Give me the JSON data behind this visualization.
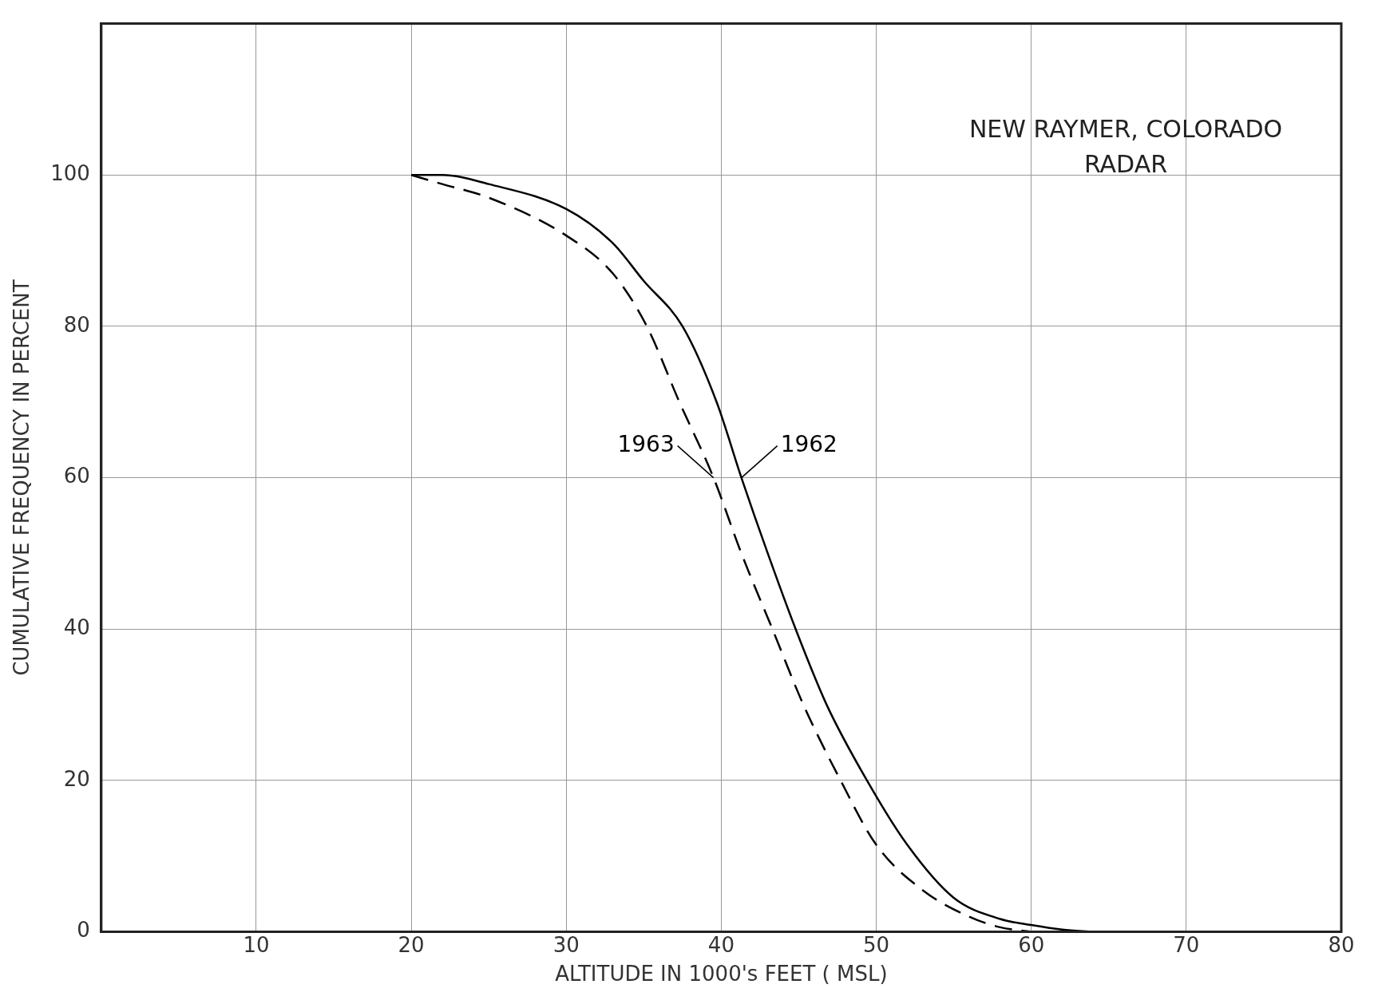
{
  "chart_data": {
    "type": "line",
    "xlabel": "ALTITUDE IN 1000's FEET ( MSL)",
    "ylabel": "CUMULATIVE FREQUENCY IN PERCENT",
    "annotations": [
      "NEW RAYMER, COLORADO",
      "RADAR"
    ],
    "xlim": [
      0,
      80
    ],
    "xticks": [
      10,
      20,
      30,
      40,
      50,
      60,
      70,
      80
    ],
    "ylim": [
      0,
      120
    ],
    "yticks": [
      0,
      20,
      40,
      60,
      80,
      100
    ],
    "grid": true,
    "legend": false,
    "marker": "none",
    "series": [
      {
        "name": "1962",
        "color": "#000000",
        "line_style": "solid",
        "x": [
          20,
          22,
          25,
          30,
          33,
          35,
          37.5,
          39.7,
          41.3,
          43,
          44.8,
          46.8,
          49.4,
          52,
          55,
          58,
          60,
          62,
          64
        ],
        "values": [
          100,
          100,
          98.8,
          95.5,
          91,
          86,
          80,
          70,
          60,
          50,
          40,
          30,
          20,
          11.5,
          4.5,
          1.7,
          0.9,
          0.3,
          0
        ]
      },
      {
        "name": "1963",
        "color": "#000000",
        "line_style": "dashed",
        "x": [
          20,
          22,
          25,
          30,
          33,
          35.2,
          37.3,
          39.5,
          41.3,
          43.3,
          45.3,
          47.7,
          50,
          53,
          56,
          58,
          60
        ],
        "values": [
          100,
          98.8,
          97,
          92,
          87,
          80,
          70,
          60,
          50,
          40,
          30,
          20,
          11.5,
          5.5,
          2,
          0.6,
          0
        ]
      }
    ]
  }
}
